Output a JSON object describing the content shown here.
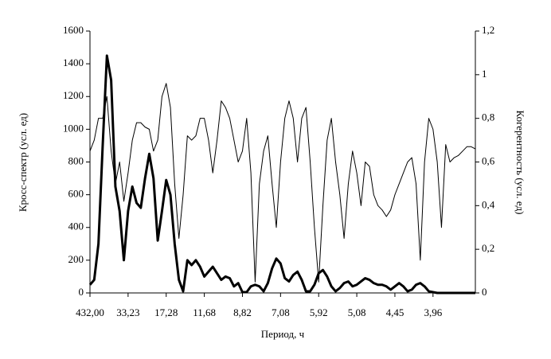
{
  "chart_data": {
    "type": "line",
    "x_label": "Период, ч",
    "y_label": "Кросс-спектр (усл. ед)",
    "y2_label": "Когерентность (усл. ед)",
    "categories": [
      "432,00",
      null,
      null,
      null,
      null,
      null,
      null,
      null,
      null,
      "33,23",
      null,
      null,
      null,
      null,
      null,
      null,
      null,
      null,
      "17,28",
      null,
      null,
      null,
      null,
      null,
      null,
      null,
      null,
      "11,68",
      null,
      null,
      null,
      null,
      null,
      null,
      null,
      null,
      "8,82",
      null,
      null,
      null,
      null,
      null,
      null,
      null,
      null,
      "7,08",
      null,
      null,
      null,
      null,
      null,
      null,
      null,
      null,
      "5,92",
      null,
      null,
      null,
      null,
      null,
      null,
      null,
      null,
      "5,08",
      null,
      null,
      null,
      null,
      null,
      null,
      null,
      null,
      "4,45",
      null,
      null,
      null,
      null,
      null,
      null,
      null,
      null,
      "3,96",
      null,
      null,
      null,
      null,
      null,
      null,
      null,
      null,
      null,
      null
    ],
    "series": [
      {
        "color": "#000000",
        "width": 3,
        "values": [
          50,
          80,
          300,
          900,
          1450,
          1300,
          650,
          500,
          200,
          500,
          650,
          550,
          520,
          700,
          850,
          700,
          320,
          500,
          690,
          600,
          300,
          80,
          10,
          200,
          170,
          200,
          160,
          100,
          130,
          160,
          120,
          80,
          100,
          90,
          40,
          60,
          5,
          5,
          40,
          50,
          40,
          10,
          60,
          150,
          210,
          180,
          90,
          70,
          110,
          130,
          80,
          10,
          10,
          50,
          120,
          140,
          100,
          40,
          10,
          30,
          60,
          70,
          40,
          50,
          70,
          90,
          80,
          60,
          50,
          50,
          40,
          20,
          40,
          60,
          40,
          10,
          20,
          50,
          60,
          40,
          10,
          5,
          0,
          0,
          0,
          0,
          0,
          0,
          0,
          0,
          0,
          0
        ]
      },
      {
        "color": "#000000",
        "width": 1,
        "axis": "y2",
        "values": [
          0.65,
          0.7,
          0.8,
          0.8,
          0.9,
          0.65,
          0.5,
          0.6,
          0.42,
          0.55,
          0.7,
          0.78,
          0.78,
          0.76,
          0.75,
          0.65,
          0.7,
          0.9,
          0.96,
          0.85,
          0.5,
          0.25,
          0.45,
          0.72,
          0.7,
          0.72,
          0.8,
          0.8,
          0.7,
          0.55,
          0.7,
          0.88,
          0.85,
          0.8,
          0.7,
          0.6,
          0.65,
          0.8,
          0.55,
          0.05,
          0.5,
          0.65,
          0.72,
          0.5,
          0.3,
          0.6,
          0.8,
          0.88,
          0.8,
          0.6,
          0.8,
          0.85,
          0.6,
          0.3,
          0.05,
          0.4,
          0.7,
          0.8,
          0.6,
          0.45,
          0.25,
          0.5,
          0.65,
          0.55,
          0.4,
          0.6,
          0.58,
          0.45,
          0.4,
          0.38,
          0.35,
          0.38,
          0.45,
          0.5,
          0.55,
          0.6,
          0.62,
          0.5,
          0.15,
          0.6,
          0.8,
          0.75,
          0.6,
          0.3,
          0.68,
          0.6,
          0.62,
          0.63,
          0.65,
          0.67,
          0.67,
          0.66
        ]
      }
    ],
    "ylim": [
      0,
      1600
    ],
    "yticks": [
      0,
      200,
      400,
      600,
      800,
      1000,
      1200,
      1400,
      1600
    ],
    "y2lim": [
      0,
      1.2
    ],
    "y2ticks": [
      0,
      {
        "value": 0.2,
        "label": "0,2"
      },
      {
        "value": 0.4,
        "label": "0,4"
      },
      {
        "value": 0.6,
        "label": "0,6"
      },
      {
        "value": 0.8,
        "label": "0,8"
      },
      1,
      {
        "value": 1.2,
        "label": "1,2"
      }
    ],
    "grid": false
  }
}
